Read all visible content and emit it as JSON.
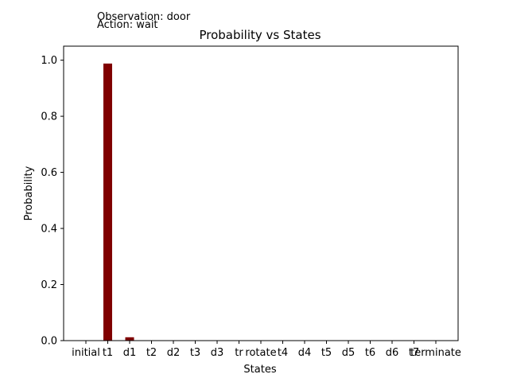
{
  "annotations": {
    "observation": "Observation: door",
    "action": "Action: wait"
  },
  "chart_data": {
    "type": "bar",
    "title": "Probability vs States",
    "xlabel": "States",
    "ylabel": "Probability",
    "categories": [
      "initial",
      "t1",
      "d1",
      "t2",
      "d2",
      "t3",
      "d3",
      "tr",
      "rotate",
      "t4",
      "d4",
      "t5",
      "d5",
      "t6",
      "d6",
      "t7",
      "terminate"
    ],
    "values": [
      0,
      0.988,
      0.012,
      0,
      0,
      0,
      0,
      0,
      0,
      0,
      0,
      0,
      0,
      0,
      0,
      0,
      0
    ],
    "ylim": [
      0,
      1.05
    ],
    "yticks": [
      "0.0",
      "0.2",
      "0.4",
      "0.6",
      "0.8",
      "1.0"
    ],
    "bar_color": "#800000",
    "grid": false,
    "legend": "none"
  }
}
